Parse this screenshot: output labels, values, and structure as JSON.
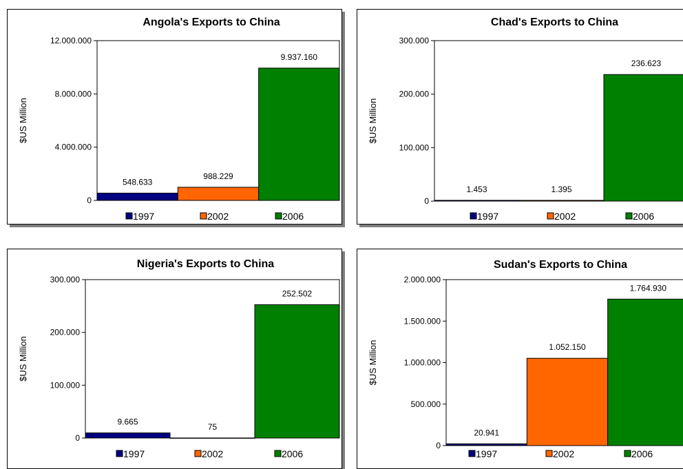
{
  "legend": [
    "1997",
    "2002",
    "2006"
  ],
  "colors": {
    "1997": "#000080",
    "2002": "#ff6600",
    "2006": "#008000"
  },
  "chart_data": [
    {
      "type": "bar",
      "title": "Angola's Exports to China",
      "ylabel": "$US Million",
      "categories": [
        "1997",
        "2002",
        "2006"
      ],
      "values": [
        548633,
        988229,
        9937160
      ],
      "data_labels": [
        "548.633",
        "988.229",
        "9.937.160"
      ],
      "ylim": [
        0,
        12000000
      ],
      "yticks": [
        0,
        4000000,
        8000000,
        12000000
      ],
      "ytick_labels": [
        "0",
        "4.000.000",
        "8.000.000",
        "12.000.000"
      ],
      "legend_position": "bottom"
    },
    {
      "type": "bar",
      "title": "Chad's Exports to China",
      "ylabel": "$US Million",
      "categories": [
        "1997",
        "2002",
        "2006"
      ],
      "values": [
        1453,
        1395,
        236623
      ],
      "data_labels": [
        "1.453",
        "1.395",
        "236.623"
      ],
      "ylim": [
        0,
        300000
      ],
      "yticks": [
        0,
        100000,
        200000,
        300000
      ],
      "ytick_labels": [
        "0",
        "100.000",
        "200.000",
        "300.000"
      ],
      "legend_position": "bottom"
    },
    {
      "type": "bar",
      "title": "Nigeria's Exports to China",
      "ylabel": "$US Million",
      "categories": [
        "1997",
        "2002",
        "2006"
      ],
      "values": [
        9665,
        75,
        252502
      ],
      "data_labels": [
        "9.665",
        "75",
        "252.502"
      ],
      "ylim": [
        0,
        300000
      ],
      "yticks": [
        0,
        100000,
        200000,
        300000
      ],
      "ytick_labels": [
        "0",
        "100.000",
        "200.000",
        "300.000"
      ],
      "legend_position": "bottom"
    },
    {
      "type": "bar",
      "title": "Sudan's Exports to China",
      "ylabel": "$US Million",
      "categories": [
        "1997",
        "2002",
        "2006"
      ],
      "values": [
        20941,
        1052150,
        1764930
      ],
      "data_labels": [
        "20.941",
        "1.052.150",
        "1.764.930"
      ],
      "ylim": [
        0,
        2000000
      ],
      "yticks": [
        0,
        500000,
        1000000,
        1500000,
        2000000
      ],
      "ytick_labels": [
        "0",
        "500.000",
        "1.000.000",
        "1.500.000",
        "2.000.000"
      ],
      "legend_position": "bottom"
    }
  ]
}
